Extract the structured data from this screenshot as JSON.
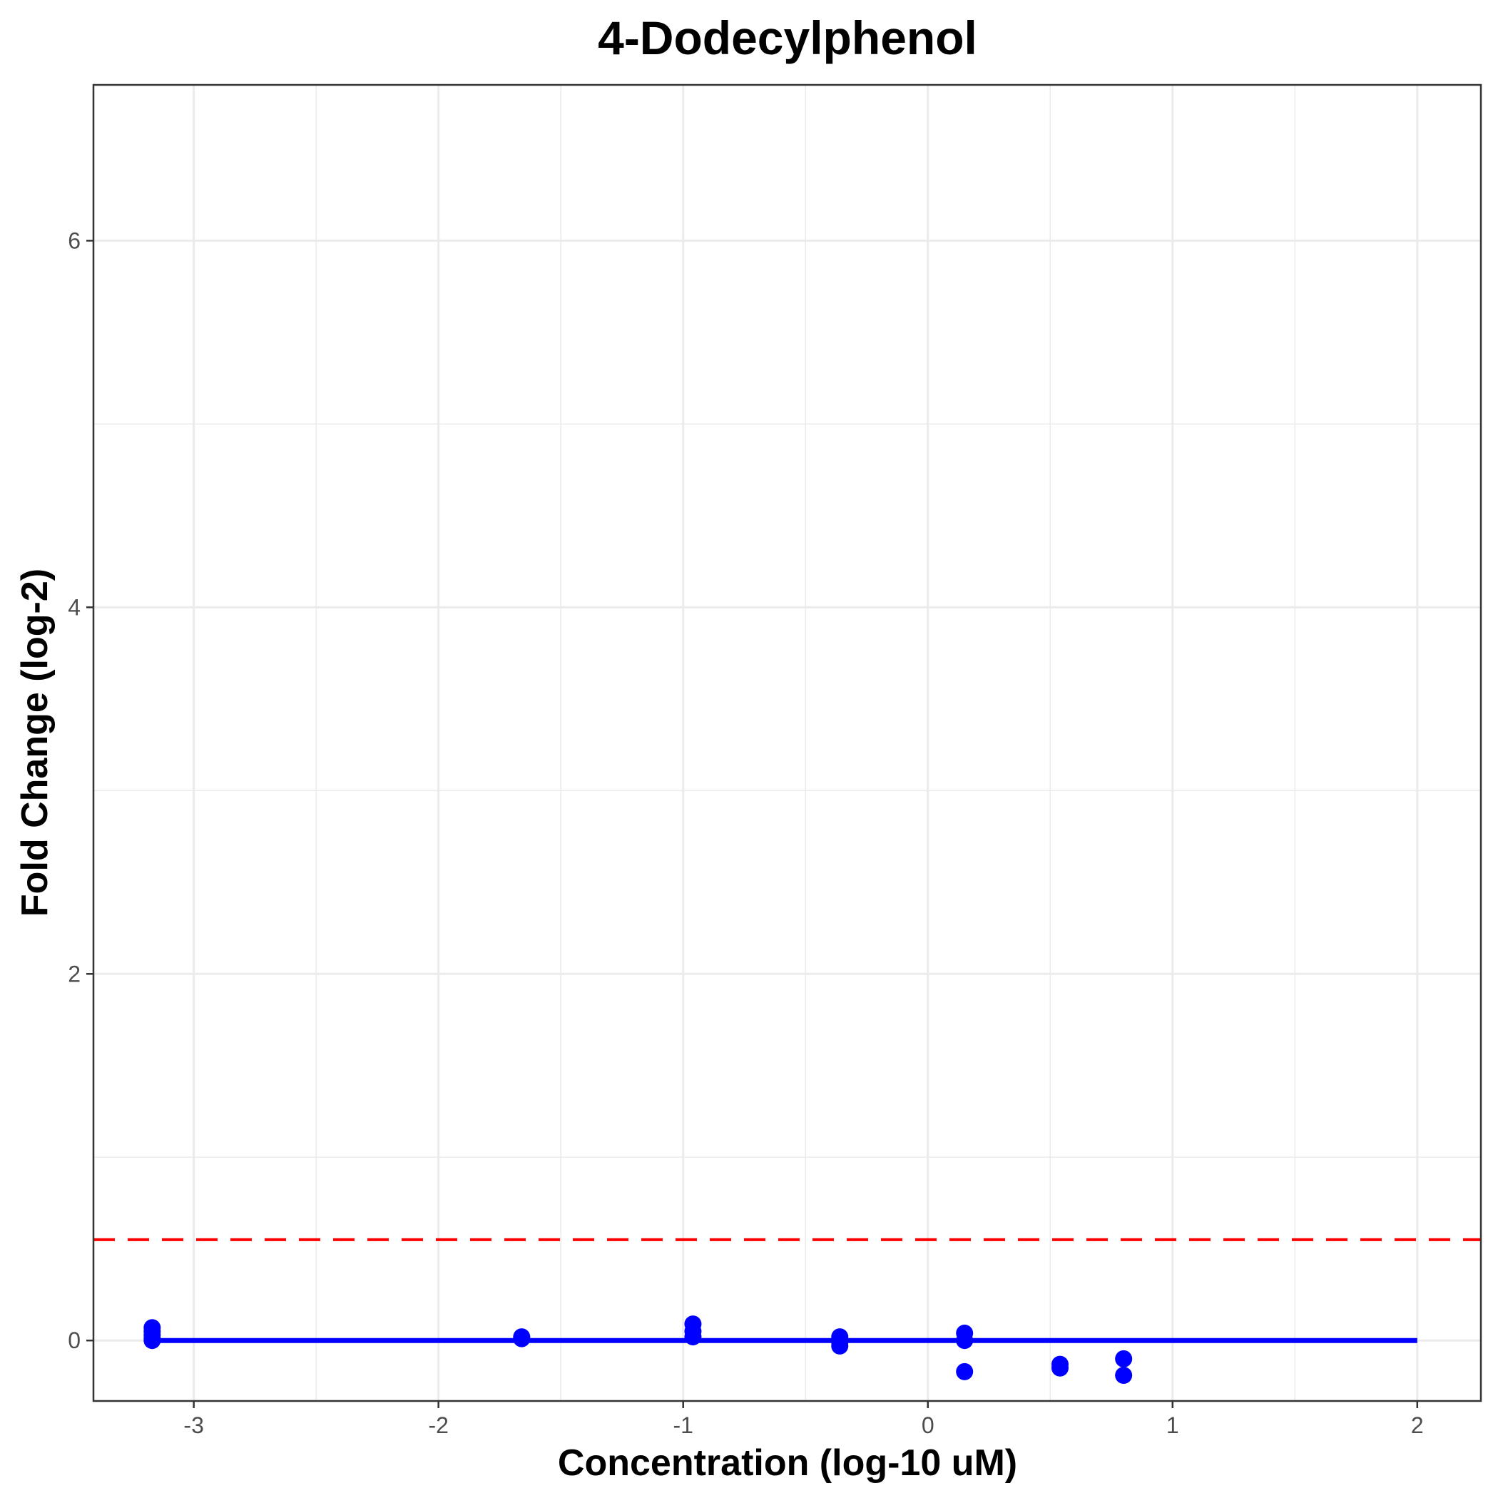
{
  "chart_data": {
    "type": "scatter",
    "title": "4-Dodecylphenol",
    "xlabel": "Concentration (log-10 uM)",
    "ylabel": "Fold Change (log-2)",
    "xlim": [
      -3.41,
      2.26
    ],
    "ylim": [
      -0.33,
      6.85
    ],
    "xticks": [
      -3,
      -2,
      -1,
      0,
      1,
      2
    ],
    "yticks": [
      0,
      2,
      4,
      6
    ],
    "grid": true,
    "colors": {
      "points": "#0000ff",
      "fit": "#0000ff",
      "threshold": "#ff0000"
    },
    "points": [
      {
        "x": -3.17,
        "y": 0.07
      },
      {
        "x": -3.17,
        "y": 0.05
      },
      {
        "x": -3.17,
        "y": 0.03
      },
      {
        "x": -3.17,
        "y": 0.01
      },
      {
        "x": -3.17,
        "y": 0.0
      },
      {
        "x": -1.66,
        "y": 0.02
      },
      {
        "x": -1.66,
        "y": 0.01
      },
      {
        "x": -0.96,
        "y": 0.09
      },
      {
        "x": -0.96,
        "y": 0.05
      },
      {
        "x": -0.96,
        "y": 0.02
      },
      {
        "x": -0.36,
        "y": 0.02
      },
      {
        "x": -0.36,
        "y": -0.01
      },
      {
        "x": -0.36,
        "y": -0.03
      },
      {
        "x": 0.15,
        "y": 0.04
      },
      {
        "x": 0.15,
        "y": 0.0
      },
      {
        "x": 0.15,
        "y": -0.17
      },
      {
        "x": 0.54,
        "y": -0.13
      },
      {
        "x": 0.54,
        "y": -0.15
      },
      {
        "x": 0.8,
        "y": -0.1
      },
      {
        "x": 0.8,
        "y": -0.19
      }
    ],
    "fit_line": {
      "x": [
        -3.17,
        2.0
      ],
      "y": [
        0.0,
        0.0
      ]
    },
    "threshold_y": 0.55
  }
}
